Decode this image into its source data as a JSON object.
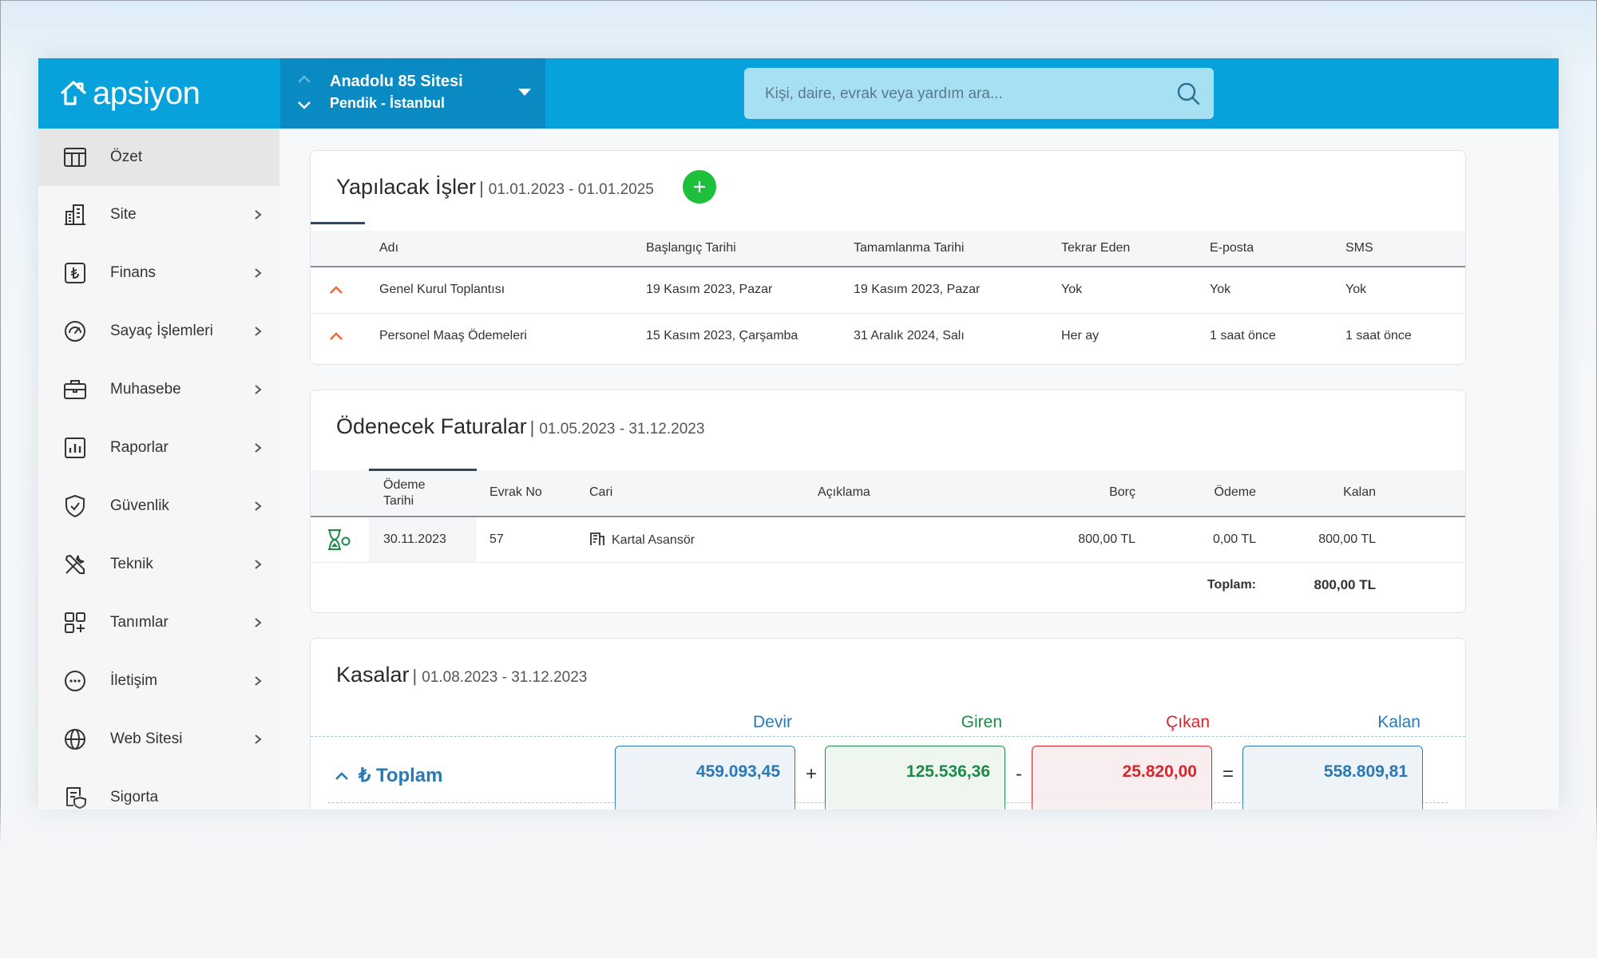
{
  "header": {
    "logo_text": "apsiyon",
    "site_name": "Anadolu 85 Sitesi",
    "site_location": "Pendik - İstanbul",
    "search_placeholder": "Kişi, daire, evrak veya yardım ara..."
  },
  "sidebar": {
    "items": [
      {
        "label": "Özet",
        "icon": "table-icon",
        "active": true
      },
      {
        "label": "Site",
        "icon": "building-icon"
      },
      {
        "label": "Finans",
        "icon": "lira-icon"
      },
      {
        "label": "Sayaç İşlemleri",
        "icon": "gauge-icon"
      },
      {
        "label": "Muhasebe",
        "icon": "briefcase-icon"
      },
      {
        "label": "Raporlar",
        "icon": "report-chart-icon"
      },
      {
        "label": "Güvenlik",
        "icon": "shield-check-icon"
      },
      {
        "label": "Teknik",
        "icon": "tools-icon"
      },
      {
        "label": "Tanımlar",
        "icon": "grid-plus-icon"
      },
      {
        "label": "İletişim",
        "icon": "chat-bubble-icon"
      },
      {
        "label": "Web Sitesi",
        "icon": "globe-icon"
      },
      {
        "label": "Sigorta",
        "icon": "insurance-doc-icon"
      }
    ]
  },
  "todo": {
    "title": "Yapılacak İşler",
    "range": "01.01.2023 - 01.01.2025",
    "columns": [
      "Adı",
      "Başlangıç Tarihi",
      "Tamamlanma Tarihi",
      "Tekrar Eden",
      "E-posta",
      "SMS"
    ],
    "rows": [
      {
        "name": "Genel Kurul Toplantısı",
        "start": "19 Kasım 2023, Pazar",
        "end": "19 Kasım 2023, Pazar",
        "repeat": "Yok",
        "email": "Yok",
        "sms": "Yok"
      },
      {
        "name": "Personel Maaş Ödemeleri",
        "start": "15 Kasım 2023, Çarşamba",
        "end": "31 Aralık 2024, Salı",
        "repeat": "Her ay",
        "email": "1 saat önce",
        "sms": "1 saat önce"
      }
    ]
  },
  "bills": {
    "title": "Ödenecek Faturalar",
    "range": "01.05.2023 - 31.12.2023",
    "columns": {
      "date_line1": "Ödeme",
      "date_line2": "Tarihi",
      "doc": "Evrak No",
      "account": "Cari",
      "desc": "Açıklama",
      "debt": "Borç",
      "payment": "Ödeme",
      "remaining": "Kalan"
    },
    "rows": [
      {
        "date": "30.11.2023",
        "doc": "57",
        "account": "Kartal Asansör",
        "desc": "",
        "debt": "800,00 TL",
        "payment": "0,00 TL",
        "remaining": "800,00 TL"
      }
    ],
    "total_label": "Toplam:",
    "total_value": "800,00 TL"
  },
  "cash": {
    "title": "Kasalar",
    "range": "01.08.2023 - 31.12.2023",
    "headers": {
      "devir": "Devir",
      "giren": "Giren",
      "cikan": "Çıkan",
      "kalan": "Kalan"
    },
    "row_label": "₺ Toplam",
    "values": {
      "devir": "459.093,45",
      "giren": "125.536,36",
      "cikan": "25.820,00",
      "kalan": "558.809,81"
    },
    "ops": {
      "plus": "+",
      "minus": "-",
      "equals": "="
    }
  },
  "colors": {
    "brand": "#07a2dc",
    "green": "#1e8a4a",
    "red": "#d9252b",
    "blue": "#2a79b5"
  }
}
